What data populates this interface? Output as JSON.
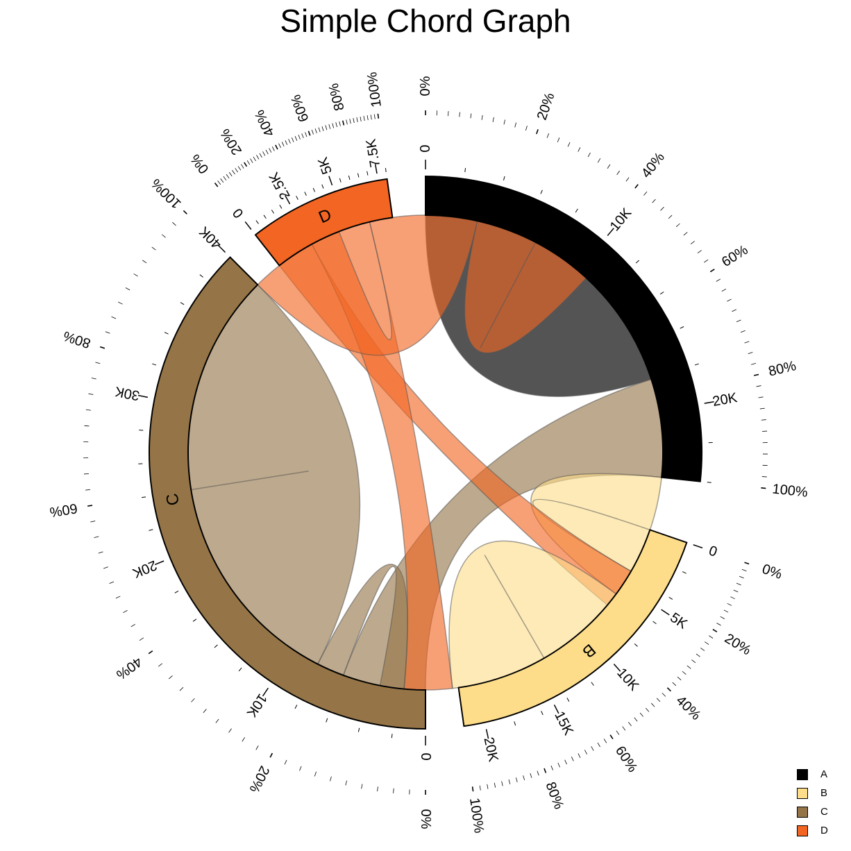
{
  "chart_data": {
    "type": "chord",
    "title": "Simple Chord Graph",
    "sectors": [
      {
        "name": "A",
        "color": "#000000",
        "total": 24000,
        "kticks": [
          {
            "v": 0,
            "t": "0"
          },
          {
            "v": 10000,
            "t": "10K"
          },
          {
            "v": 20000,
            "t": "20K"
          }
        ],
        "pticks": [
          "0%",
          "20%",
          "40%",
          "60%",
          "80%",
          "100%"
        ]
      },
      {
        "name": "B",
        "color": "#FDDD8A",
        "total": 21500,
        "kticks": [
          {
            "v": 0,
            "t": "0"
          },
          {
            "v": 5000,
            "t": "5K"
          },
          {
            "v": 10000,
            "t": "10K"
          },
          {
            "v": 15000,
            "t": "15K"
          },
          {
            "v": 20000,
            "t": "20K"
          }
        ],
        "pticks": [
          "0%",
          "20%",
          "40%",
          "60%",
          "80%",
          "100%"
        ]
      },
      {
        "name": "C",
        "color": "#957547",
        "total": 40000,
        "kticks": [
          {
            "v": 0,
            "t": "0"
          },
          {
            "v": 10000,
            "t": "10K"
          },
          {
            "v": 20000,
            "t": "20K"
          },
          {
            "v": 30000,
            "t": "30K"
          },
          {
            "v": 40000,
            "t": "40K"
          }
        ],
        "pticks": [
          "0%",
          "20%",
          "40%",
          "60%",
          "80%",
          "100%"
        ]
      },
      {
        "name": "D",
        "color": "#F26522",
        "total": 8000,
        "kticks": [
          {
            "v": 0,
            "t": "0"
          },
          {
            "v": 2500,
            "t": "2.5K"
          },
          {
            "v": 5000,
            "t": "5K"
          },
          {
            "v": 7500,
            "t": "7.5K"
          }
        ],
        "pticks": [
          "0%",
          "20%",
          "40%",
          "60%",
          "80%",
          "100%"
        ]
      }
    ],
    "links": [
      {
        "from": "A",
        "to": "A",
        "value": 9000
      },
      {
        "from": "C",
        "to": "A",
        "value": 6000
      },
      {
        "from": "B",
        "to": "A",
        "value": 6000
      },
      {
        "from": "D",
        "to": "A",
        "value": 2500
      },
      {
        "from": "B",
        "to": "B",
        "value": 8000
      },
      {
        "from": "D",
        "to": "B",
        "value": 4000
      },
      {
        "from": "C",
        "to": "B",
        "value": 2000
      },
      {
        "from": "C",
        "to": "C",
        "value": 16000
      },
      {
        "from": "D",
        "to": "C",
        "value": 7000
      },
      {
        "from": "D",
        "to": "D",
        "value": 4000
      }
    ]
  },
  "legend": [
    {
      "label": "A",
      "color": "#000000"
    },
    {
      "label": "B",
      "color": "#FDDD8A"
    },
    {
      "label": "C",
      "color": "#957547"
    },
    {
      "label": "D",
      "color": "#F26522"
    }
  ]
}
